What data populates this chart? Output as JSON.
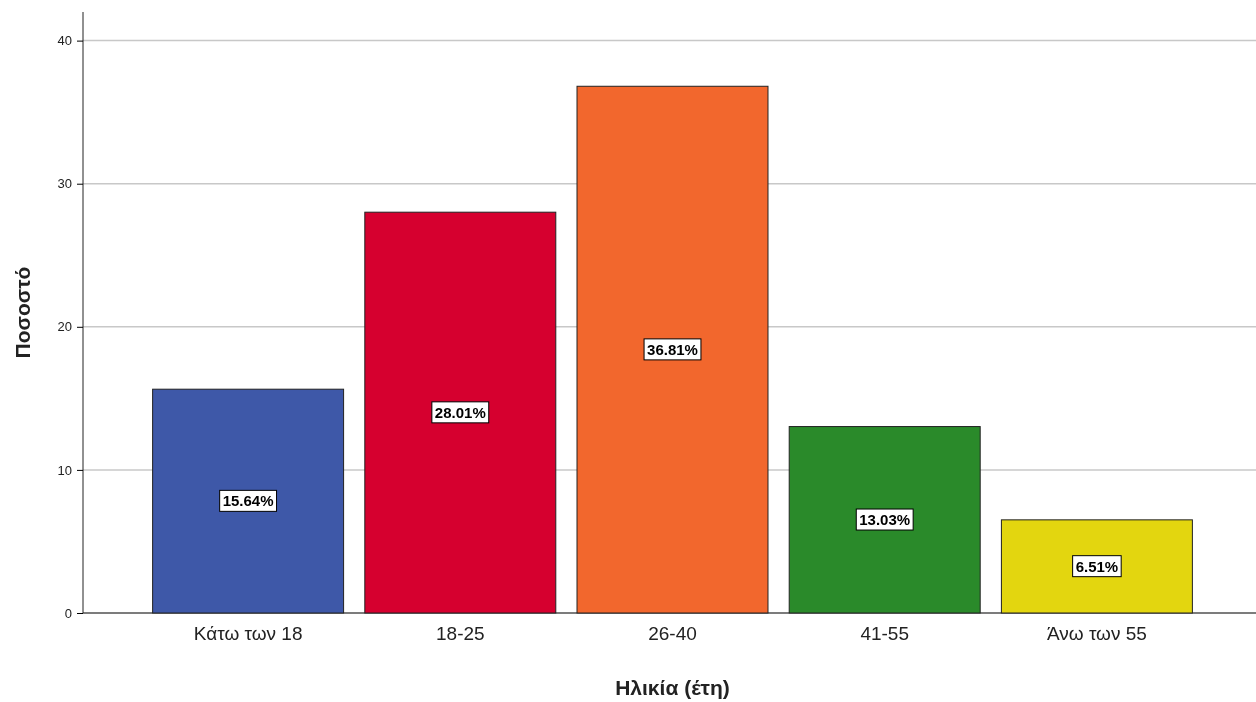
{
  "chart_data": {
    "type": "bar",
    "xlabel": "Ηλικία (έτη)",
    "ylabel": "Ποσοστό",
    "categories": [
      "Κάτω των 18",
      "18-25",
      "26-40",
      "41-55",
      "Άνω των 55"
    ],
    "values": [
      15.64,
      28.01,
      36.81,
      13.03,
      6.51
    ],
    "value_labels": [
      "15.64%",
      "28.01%",
      "36.81%",
      "13.03%",
      "6.51%"
    ],
    "colors": [
      "#3e58a8",
      "#d6002f",
      "#f2672d",
      "#2a8a2a",
      "#e3d60f"
    ],
    "ylim": [
      0,
      42
    ],
    "yticks": [
      0,
      10,
      20,
      30,
      40
    ],
    "grid": "y"
  }
}
